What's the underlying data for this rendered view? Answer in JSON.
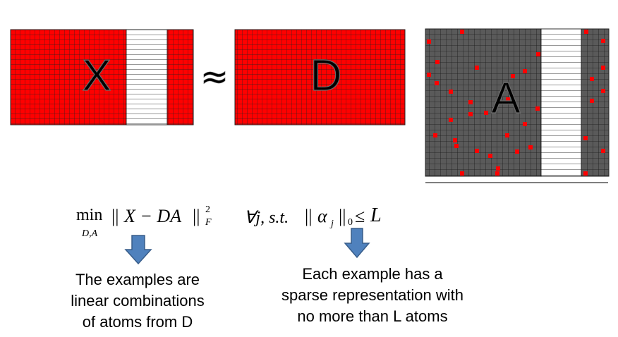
{
  "matrices": {
    "x": {
      "label": "X"
    },
    "d": {
      "label": "D"
    },
    "a": {
      "label": "A"
    }
  },
  "approx_symbol": "≈",
  "formula": {
    "min": "min",
    "min_subscript": "D,A",
    "norm_open": "||",
    "expression": "X − DA",
    "norm_close": "||",
    "exponent": "2",
    "subscript_f": "F",
    "constraint": "∀j, s.t.",
    "alpha_open": "||",
    "alpha": "α",
    "alpha_sub": "j",
    "alpha_close": "||",
    "zero_sub": "0",
    "leq": "≤",
    "limit": "L"
  },
  "captions": {
    "left": [
      "The examples are",
      "linear combinations",
      "of atoms from D"
    ],
    "right": [
      "Each example has a",
      "sparse representation with",
      "no more than L atoms"
    ]
  },
  "colors": {
    "red": "#ff0000",
    "gray": "#5a5a5a",
    "grid": "#222222",
    "arrow_fill": "#4f81bd",
    "arrow_stroke": "#385d8a"
  }
}
